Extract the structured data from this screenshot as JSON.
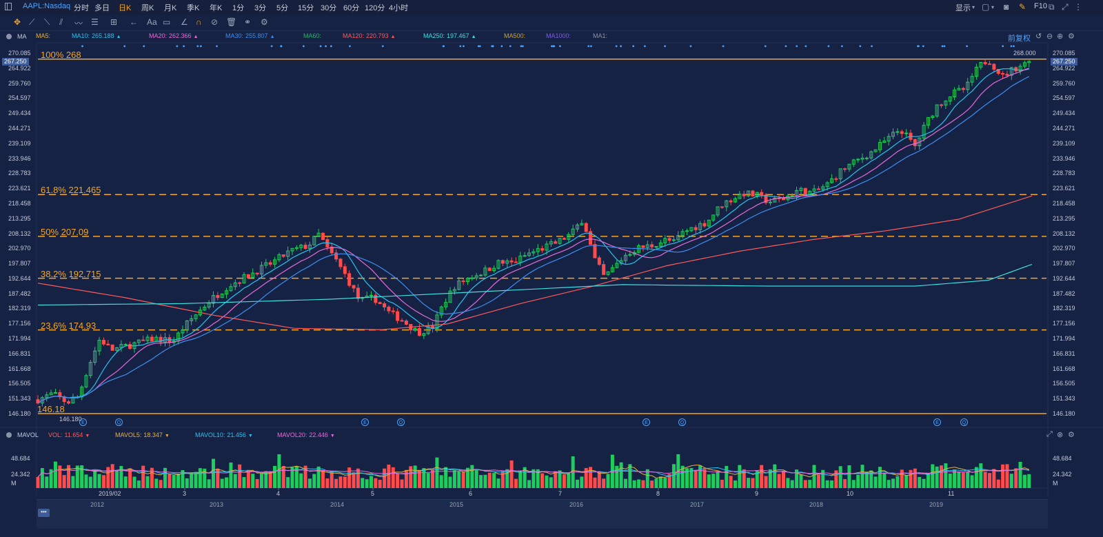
{
  "topbar": {
    "symbol": "AAPL:Nasdaq",
    "periods": [
      "分时",
      "多日",
      "日K",
      "周K",
      "月K",
      "季K",
      "年K",
      "1分",
      "3分",
      "5分",
      "15分",
      "30分",
      "60分",
      "120分",
      "4小时"
    ],
    "active_period": "日K",
    "display_label": "显示",
    "f10_label": "F10"
  },
  "ma_panel": {
    "title": "MA",
    "items": [
      {
        "label": "MA5:",
        "value": "",
        "color": "#e9b23a"
      },
      {
        "label": "MA10:",
        "value": "265.188",
        "color": "#25c4f0"
      },
      {
        "label": "MA20:",
        "value": "262.366",
        "color": "#e96bd9"
      },
      {
        "label": "MA30:",
        "value": "255.807",
        "color": "#3e8ef0"
      },
      {
        "label": "MA60:",
        "value": "",
        "color": "#2db36b"
      },
      {
        "label": "MA120:",
        "value": "220.793",
        "color": "#ff5a5a"
      },
      {
        "label": "MA250:",
        "value": "197.467",
        "color": "#3de0e0"
      },
      {
        "label": "MA500:",
        "value": "",
        "color": "#c9a53b"
      },
      {
        "label": "MA1000:",
        "value": "",
        "color": "#7a5fe0"
      },
      {
        "label": "MA1:",
        "value": "",
        "color": "#8a93a8"
      }
    ],
    "rights_label": "前复权"
  },
  "price_axis": {
    "labels": [
      "270.085",
      "264.922",
      "259.760",
      "254.597",
      "249.434",
      "244.271",
      "239.109",
      "233.946",
      "228.783",
      "223.621",
      "218.458",
      "213.295",
      "208.132",
      "202.970",
      "197.807",
      "192.644",
      "187.482",
      "182.319",
      "177.156",
      "171.994",
      "166.831",
      "161.668",
      "156.505",
      "151.343",
      "146.180"
    ],
    "current_price": "267.250",
    "high_label": "268.000",
    "low_label": "146.180"
  },
  "fibonacci": [
    {
      "label": "100% 268",
      "value": 268
    },
    {
      "label": "61.8% 221.465",
      "value": 221.465
    },
    {
      "label": "50% 207.09",
      "value": 207.09
    },
    {
      "label": "38.2% 192.715",
      "value": 192.715
    },
    {
      "label": "23.6% 174.93",
      "value": 174.93
    },
    {
      "label": "146.18",
      "value": 146.18
    }
  ],
  "volume_panel": {
    "title": "MAVOL",
    "items": [
      {
        "label": "VOL:",
        "value": "11.654",
        "color": "#ff5a5a"
      },
      {
        "label": "MAVOL5:",
        "value": "18.347",
        "color": "#e9b23a"
      },
      {
        "label": "MAVOL10:",
        "value": "21.456",
        "color": "#25c4f0"
      },
      {
        "label": "MAVOL20:",
        "value": "22.446",
        "color": "#e96bd9"
      }
    ],
    "axis_labels": [
      "48.684",
      "24.342",
      "M"
    ]
  },
  "time_axis": {
    "months": [
      "2019/02",
      "3",
      "4",
      "5",
      "6",
      "7",
      "8",
      "9",
      "10",
      "11"
    ],
    "years": [
      "2012",
      "2013",
      "2014",
      "2015",
      "2016",
      "2017",
      "2018",
      "2019"
    ]
  },
  "event_markers": [
    "E",
    "Q",
    "E",
    "Q",
    "E",
    "Q",
    "E",
    "Q"
  ],
  "chart_data": {
    "type": "candlestick",
    "ylim": [
      146.18,
      270.085
    ],
    "series": [
      {
        "name": "MA10",
        "color": "#25c4f0"
      },
      {
        "name": "MA20",
        "color": "#e96bd9"
      },
      {
        "name": "MA30",
        "color": "#3e8ef0"
      },
      {
        "name": "MA120",
        "color": "#ff5a5a"
      },
      {
        "name": "MA250",
        "color": "#3de0e0"
      }
    ],
    "anchors": [
      [
        0,
        151
      ],
      [
        20,
        153
      ],
      [
        40,
        150
      ],
      [
        55,
        152
      ],
      [
        70,
        163
      ],
      [
        85,
        172
      ],
      [
        100,
        168
      ],
      [
        130,
        170
      ],
      [
        160,
        172
      ],
      [
        185,
        171
      ],
      [
        200,
        176
      ],
      [
        215,
        180
      ],
      [
        235,
        185
      ],
      [
        260,
        190
      ],
      [
        290,
        194
      ],
      [
        320,
        198
      ],
      [
        345,
        202
      ],
      [
        370,
        204
      ],
      [
        385,
        208
      ],
      [
        395,
        203
      ],
      [
        405,
        200
      ],
      [
        420,
        194
      ],
      [
        440,
        185
      ],
      [
        460,
        186
      ],
      [
        480,
        181
      ],
      [
        500,
        178
      ],
      [
        520,
        174
      ],
      [
        540,
        176
      ],
      [
        555,
        184
      ],
      [
        570,
        190
      ],
      [
        590,
        193
      ],
      [
        610,
        195
      ],
      [
        630,
        198
      ],
      [
        650,
        198
      ],
      [
        670,
        201
      ],
      [
        690,
        203
      ],
      [
        710,
        205
      ],
      [
        730,
        208
      ],
      [
        745,
        213
      ],
      [
        752,
        208
      ],
      [
        760,
        200
      ],
      [
        775,
        193
      ],
      [
        790,
        197
      ],
      [
        805,
        201
      ],
      [
        820,
        203
      ],
      [
        840,
        204
      ],
      [
        860,
        206
      ],
      [
        870,
        205
      ],
      [
        880,
        208
      ],
      [
        895,
        210
      ],
      [
        915,
        212
      ],
      [
        925,
        215
      ],
      [
        935,
        218
      ],
      [
        950,
        220
      ],
      [
        965,
        222
      ],
      [
        985,
        221
      ],
      [
        1000,
        219
      ],
      [
        1020,
        220
      ],
      [
        1040,
        223
      ],
      [
        1060,
        222
      ],
      [
        1080,
        225
      ],
      [
        1100,
        230
      ],
      [
        1120,
        233
      ],
      [
        1140,
        236
      ],
      [
        1160,
        240
      ],
      [
        1180,
        244
      ],
      [
        1200,
        238
      ],
      [
        1215,
        246
      ],
      [
        1230,
        252
      ],
      [
        1250,
        256
      ],
      [
        1270,
        258
      ],
      [
        1280,
        263
      ],
      [
        1290,
        266
      ],
      [
        1300,
        268
      ],
      [
        1310,
        265
      ],
      [
        1320,
        262
      ],
      [
        1330,
        264
      ],
      [
        1345,
        266
      ],
      [
        1360,
        267.25
      ]
    ],
    "ma_params": {
      "MA10": 10,
      "MA20": 20,
      "MA30": 30
    },
    "ma120_points": [
      [
        0,
        191
      ],
      [
        120,
        186
      ],
      [
        240,
        180
      ],
      [
        350,
        175.5
      ],
      [
        470,
        175
      ],
      [
        560,
        177
      ],
      [
        660,
        184
      ],
      [
        760,
        190
      ],
      [
        860,
        197
      ],
      [
        960,
        202
      ],
      [
        1060,
        206
      ],
      [
        1160,
        209
      ],
      [
        1260,
        213
      ],
      [
        1360,
        221
      ]
    ],
    "ma250_points": [
      [
        0,
        183.5
      ],
      [
        200,
        184
      ],
      [
        400,
        185.5
      ],
      [
        600,
        188
      ],
      [
        800,
        190.5
      ],
      [
        1000,
        190
      ],
      [
        1200,
        190
      ],
      [
        1300,
        192
      ],
      [
        1360,
        197.5
      ]
    ],
    "volume_max": 48.684
  }
}
